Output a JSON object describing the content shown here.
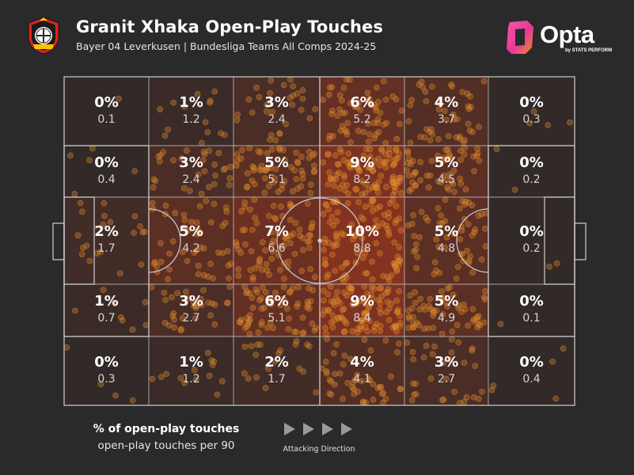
{
  "header": {
    "title": "Granit Xhaka Open-Play Touches",
    "subtitle": "Bayer 04 Leverkusen | Bundesliga Teams All Comps 2024-25",
    "crest_icon": "bayer-leverkusen-crest-icon",
    "brand": {
      "word": "Opta",
      "sub": "by STATS PERFORM",
      "icon": "opta-logo-icon"
    }
  },
  "colors": {
    "background": "#2a2a2a",
    "heat": "#c23a1a",
    "dots": "#e8902c",
    "lines": "#cfcfcf"
  },
  "chart_data": {
    "type": "heatmap",
    "title": "Granit Xhaka Open-Play Touches",
    "subtitle": "Bayer 04 Leverkusen | Bundesliga Teams All Comps 2024-25",
    "columns": 6,
    "rows": 5,
    "zones": [
      [
        {
          "pct": "0%",
          "per90": "0.1"
        },
        {
          "pct": "1%",
          "per90": "1.2"
        },
        {
          "pct": "3%",
          "per90": "2.4"
        },
        {
          "pct": "6%",
          "per90": "5.2"
        },
        {
          "pct": "4%",
          "per90": "3.7"
        },
        {
          "pct": "0%",
          "per90": "0.3"
        }
      ],
      [
        {
          "pct": "0%",
          "per90": "0.4"
        },
        {
          "pct": "3%",
          "per90": "2.4"
        },
        {
          "pct": "5%",
          "per90": "5.1"
        },
        {
          "pct": "9%",
          "per90": "8.2"
        },
        {
          "pct": "5%",
          "per90": "4.5"
        },
        {
          "pct": "0%",
          "per90": "0.2"
        }
      ],
      [
        {
          "pct": "2%",
          "per90": "1.7"
        },
        {
          "pct": "5%",
          "per90": "4.2"
        },
        {
          "pct": "7%",
          "per90": "6.6"
        },
        {
          "pct": "10%",
          "per90": "8.8"
        },
        {
          "pct": "5%",
          "per90": "4.8"
        },
        {
          "pct": "0%",
          "per90": "0.2"
        }
      ],
      [
        {
          "pct": "1%",
          "per90": "0.7"
        },
        {
          "pct": "3%",
          "per90": "2.7"
        },
        {
          "pct": "6%",
          "per90": "5.1"
        },
        {
          "pct": "9%",
          "per90": "8.4"
        },
        {
          "pct": "5%",
          "per90": "4.9"
        },
        {
          "pct": "0%",
          "per90": "0.1"
        }
      ],
      [
        {
          "pct": "0%",
          "per90": "0.3"
        },
        {
          "pct": "1%",
          "per90": "1.2"
        },
        {
          "pct": "2%",
          "per90": "1.7"
        },
        {
          "pct": "4%",
          "per90": "4.1"
        },
        {
          "pct": "3%",
          "per90": "2.7"
        },
        {
          "pct": "0%",
          "per90": "0.4"
        }
      ]
    ],
    "pct_values": [
      [
        0,
        1,
        3,
        6,
        4,
        0
      ],
      [
        0,
        3,
        5,
        9,
        5,
        0
      ],
      [
        2,
        5,
        7,
        10,
        5,
        0
      ],
      [
        1,
        3,
        6,
        9,
        5,
        0
      ],
      [
        0,
        1,
        2,
        4,
        3,
        0
      ]
    ],
    "per90_values": [
      [
        0.1,
        1.2,
        2.4,
        5.2,
        3.7,
        0.3
      ],
      [
        0.4,
        2.4,
        5.1,
        8.2,
        4.5,
        0.2
      ],
      [
        1.7,
        4.2,
        6.6,
        8.8,
        4.8,
        0.2
      ],
      [
        0.7,
        2.7,
        5.1,
        8.4,
        4.9,
        0.1
      ],
      [
        0.3,
        1.2,
        1.7,
        4.1,
        2.7,
        0.4
      ]
    ]
  },
  "legend": {
    "pct_label": "% of open-play touches",
    "per90_label": "open-play touches per 90",
    "direction_label": "Attacking Direction",
    "arrow_count": 4
  }
}
